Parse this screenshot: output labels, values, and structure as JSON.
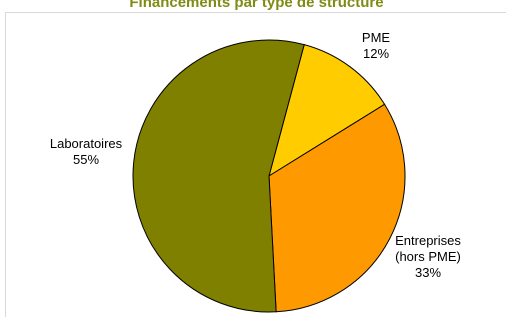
{
  "title": "Financements par type de structure",
  "title_color": "#7f8c14",
  "chart_data": {
    "type": "pie",
    "title": "Financements par type de structure",
    "categories": [
      "PME",
      "Entreprises (hors PME)",
      "Laboratoires"
    ],
    "values": [
      12,
      33,
      55
    ],
    "labels": [
      {
        "name_lines": [
          "PME"
        ],
        "value": "12%"
      },
      {
        "name_lines": [
          "Entreprises",
          "(hors PME)"
        ],
        "value": "33%"
      },
      {
        "name_lines": [
          "Laboratoires"
        ],
        "value": "55%"
      }
    ],
    "colors": [
      "#ffcc00",
      "#ff9900",
      "#808000"
    ],
    "edge_color": "#000000",
    "start_angle_deg": 15
  }
}
